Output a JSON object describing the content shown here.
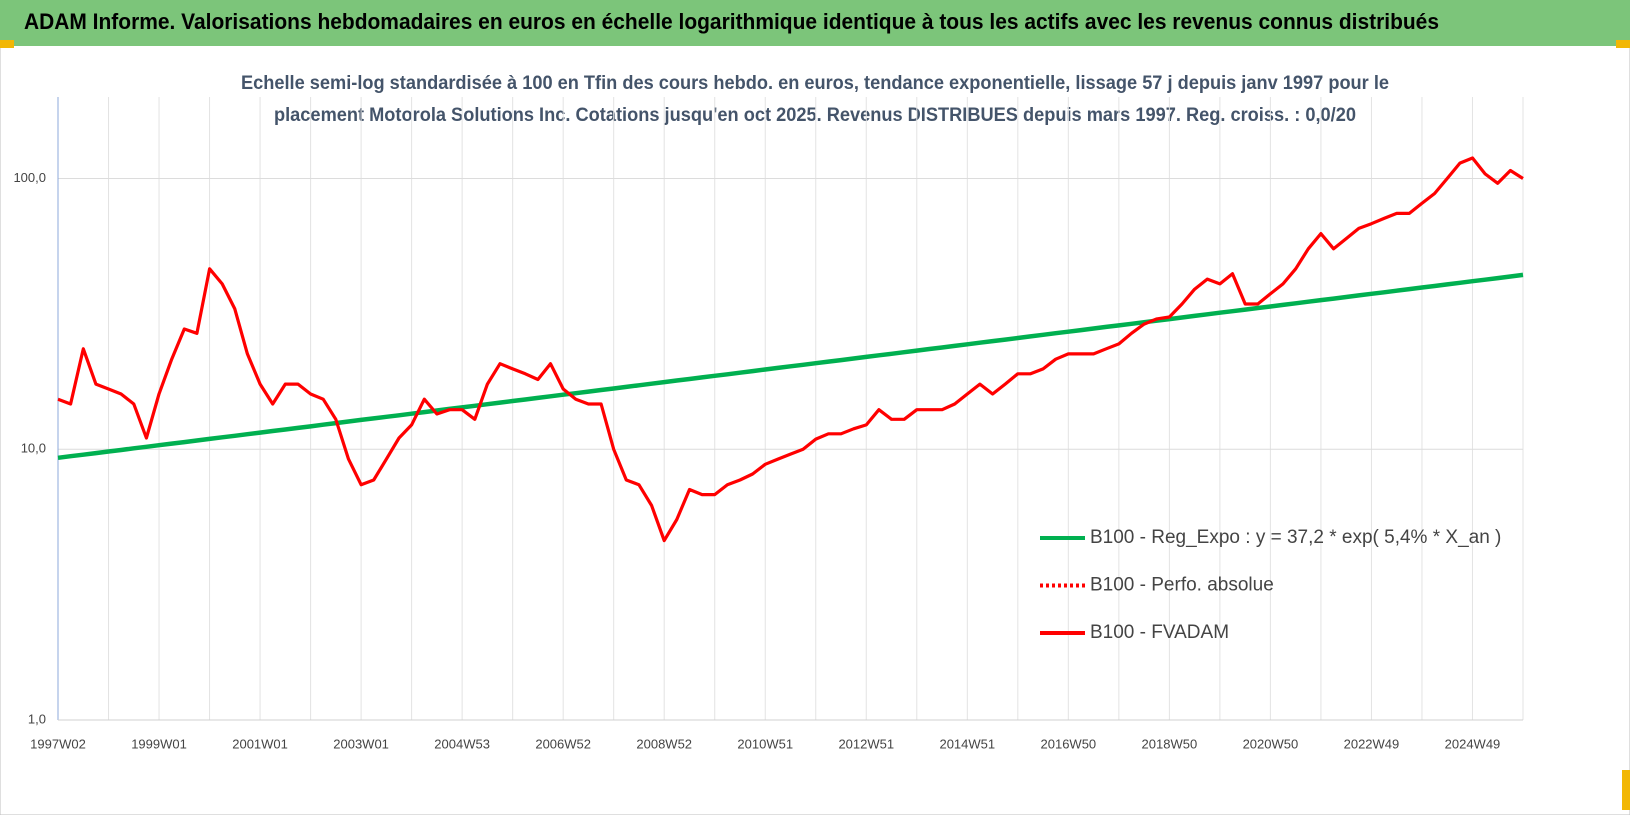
{
  "header": {
    "title": "ADAM Informe. Valorisations hebdomadaires en euros en échelle logarithmique identique à tous les actifs avec les revenus connus distribués"
  },
  "chart_data": {
    "type": "line",
    "title": [
      "Echelle semi-log standardisée à 100 en Tfin des cours hebdo. en euros, tendance exponentielle, lissage 57 j depuis janv 1997 pour le",
      "placement Motorola Solutions Inc. Cotations jusqu'en oct 2025. Revenus DISTRIBUES depuis mars 1997. Reg. croiss. : 0,0/20"
    ],
    "categories": [
      "1997W02",
      null,
      null,
      null,
      null,
      null,
      null,
      null,
      "1999W01",
      null,
      null,
      null,
      null,
      null,
      null,
      null,
      "2001W01",
      null,
      null,
      null,
      null,
      null,
      null,
      null,
      "2003W01",
      null,
      null,
      null,
      null,
      null,
      null,
      null,
      "2004W53",
      null,
      null,
      null,
      null,
      null,
      null,
      null,
      "2006W52",
      null,
      null,
      null,
      null,
      null,
      null,
      null,
      "2008W52",
      null,
      null,
      null,
      null,
      null,
      null,
      null,
      "2010W51",
      null,
      null,
      null,
      null,
      null,
      null,
      null,
      "2012W51",
      null,
      null,
      null,
      null,
      null,
      null,
      null,
      "2014W51",
      null,
      null,
      null,
      null,
      null,
      null,
      null,
      "2016W50",
      null,
      null,
      null,
      null,
      null,
      null,
      null,
      "2018W50",
      null,
      null,
      null,
      null,
      null,
      null,
      null,
      "2020W50",
      null,
      null,
      null,
      null,
      null,
      null,
      null,
      "2022W49",
      null,
      null,
      null,
      null,
      null,
      null,
      null,
      "2024W49",
      null,
      null,
      null,
      null
    ],
    "series": [
      {
        "name": "B100 - Reg_Expo : y = 37,2 * exp( 5,4% *  X_an )",
        "color": "#00b050",
        "style": "solid",
        "values": [
          9.3,
          9.43,
          9.55,
          9.68,
          9.81,
          9.94,
          10.08,
          10.21,
          10.35,
          10.49,
          10.63,
          10.77,
          10.92,
          11.07,
          11.21,
          11.37,
          11.52,
          11.68,
          11.83,
          11.99,
          12.15,
          12.32,
          12.49,
          12.66,
          12.83,
          13.0,
          13.18,
          13.35,
          13.53,
          13.72,
          13.9,
          14.09,
          14.28,
          14.47,
          14.67,
          14.87,
          15.07,
          15.27,
          15.48,
          15.69,
          15.9,
          16.11,
          16.33,
          16.55,
          16.77,
          17.0,
          17.23,
          17.46,
          17.7,
          17.94,
          18.18,
          18.42,
          18.67,
          18.92,
          19.18,
          19.44,
          19.7,
          19.97,
          20.24,
          20.51,
          20.78,
          21.07,
          21.35,
          21.64,
          21.93,
          22.23,
          22.52,
          22.83,
          23.14,
          23.45,
          23.76,
          24.08,
          24.42,
          24.75,
          25.08,
          25.42,
          25.76,
          26.11,
          26.46,
          26.82,
          27.18,
          27.55,
          27.92,
          28.3,
          28.68,
          29.07,
          29.46,
          29.86,
          30.26,
          30.67,
          31.08,
          31.5,
          31.93,
          32.36,
          32.8,
          33.24,
          33.68,
          34.14,
          34.6,
          35.07,
          35.54,
          36.02,
          36.5,
          37.0,
          37.5,
          38.0,
          38.52,
          39.04,
          39.56,
          40.1,
          40.64,
          41.18,
          41.74,
          42.3,
          42.87,
          43.45,
          44.04
        ]
      },
      {
        "name": "B100 - Perfo. absolue",
        "color": "#ff0000",
        "style": "dotted",
        "values": [
          null,
          null,
          null,
          null,
          null,
          null,
          null,
          null,
          null,
          null,
          null,
          null,
          null,
          null,
          null,
          null,
          null,
          null,
          null,
          null,
          null,
          null,
          null,
          null,
          null,
          null,
          null,
          null,
          null,
          null,
          null,
          null,
          null,
          null,
          null,
          null,
          null,
          null,
          null,
          null,
          null,
          null,
          null,
          null,
          null,
          null,
          null,
          null,
          null,
          null,
          null,
          null,
          null,
          null,
          null,
          null,
          null,
          null,
          null,
          null,
          null,
          null,
          null,
          null,
          null,
          null,
          null,
          null,
          null,
          null,
          null,
          null,
          null,
          null,
          null,
          null,
          null,
          null,
          null,
          null,
          null,
          null,
          null,
          null,
          null,
          null,
          null,
          null,
          null,
          null,
          null,
          null,
          null,
          null,
          null,
          null,
          null,
          null,
          null,
          null,
          null,
          null,
          null,
          null,
          null,
          null,
          null,
          null,
          null,
          null,
          null,
          null,
          null,
          null,
          null,
          null,
          null
        ]
      },
      {
        "name": "B100 - FVADAM",
        "color": "#ff0000",
        "style": "solid",
        "values": [
          15.3,
          14.7,
          23.5,
          17.4,
          16.7,
          16,
          14.7,
          11,
          16,
          21.5,
          27.8,
          26.8,
          46.4,
          40.8,
          33,
          22.5,
          17.4,
          14.7,
          17.4,
          17.4,
          16,
          15.3,
          12.9,
          9.2,
          7.4,
          7.7,
          9.2,
          11,
          12.3,
          15.3,
          13.5,
          14,
          14,
          12.9,
          17.4,
          20.7,
          19.8,
          19,
          18.1,
          20.7,
          16.7,
          15.3,
          14.7,
          14.7,
          10,
          7.7,
          7.4,
          6.2,
          4.6,
          5.5,
          7.1,
          6.8,
          6.8,
          7.4,
          7.7,
          8.1,
          8.8,
          9.2,
          9.6,
          10,
          10.9,
          11.4,
          11.4,
          11.9,
          12.3,
          14,
          12.9,
          12.9,
          14,
          14,
          14,
          14.7,
          16,
          17.4,
          16,
          17.4,
          19,
          19,
          19.8,
          21.5,
          22.5,
          22.5,
          22.5,
          23.5,
          24.5,
          26.8,
          29,
          30.3,
          30.8,
          34.4,
          39,
          42.5,
          40.8,
          44.5,
          34.4,
          34.4,
          37.5,
          40.8,
          46.4,
          55,
          62.6,
          55,
          60,
          65.4,
          68.1,
          71.2,
          74.3,
          74.3,
          81,
          88,
          100,
          114,
          119,
          104,
          96,
          107,
          100
        ]
      }
    ],
    "ylim": [
      1,
      200
    ],
    "yticks": [
      {
        "value": 1,
        "label": "1,0"
      },
      {
        "value": 10,
        "label": "10,0"
      },
      {
        "value": 100,
        "label": "100,0"
      }
    ],
    "log_scale": true,
    "grid": true,
    "legend": "lower right"
  }
}
